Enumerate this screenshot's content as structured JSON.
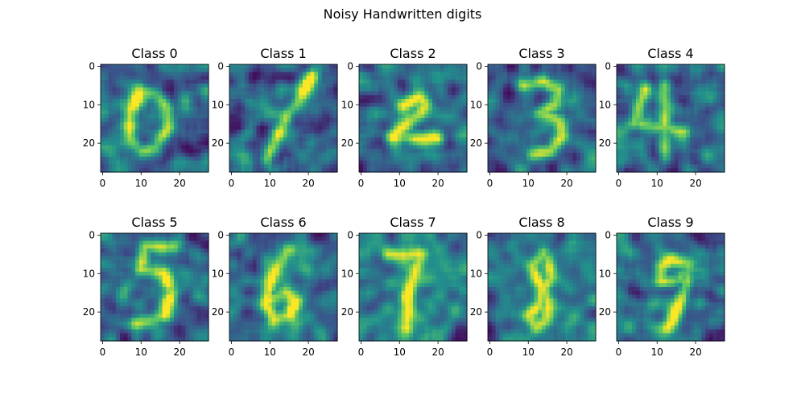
{
  "figure": {
    "title": "Noisy Handwritten digits"
  },
  "chart_data": {
    "type": "heatmap",
    "colormap": "viridis",
    "colormap_stops": [
      "#440154",
      "#3b528b",
      "#21918c",
      "#5ec962",
      "#fde725"
    ],
    "image_shape": [
      28,
      28
    ],
    "grid": false,
    "x_ticks": [
      "0",
      "10",
      "20"
    ],
    "y_ticks": [
      "0",
      "10",
      "20"
    ],
    "x_range": [
      -0.5,
      27.5
    ],
    "y_range": [
      27.5,
      -0.5
    ],
    "panels": [
      {
        "title": "Class 0",
        "digit": "0"
      },
      {
        "title": "Class 1",
        "digit": "1"
      },
      {
        "title": "Class 2",
        "digit": "2"
      },
      {
        "title": "Class 3",
        "digit": "3"
      },
      {
        "title": "Class 4",
        "digit": "4"
      },
      {
        "title": "Class 5",
        "digit": "5"
      },
      {
        "title": "Class 6",
        "digit": "6"
      },
      {
        "title": "Class 7",
        "digit": "7"
      },
      {
        "title": "Class 8",
        "digit": "8"
      },
      {
        "title": "Class 9",
        "digit": "9"
      }
    ]
  }
}
